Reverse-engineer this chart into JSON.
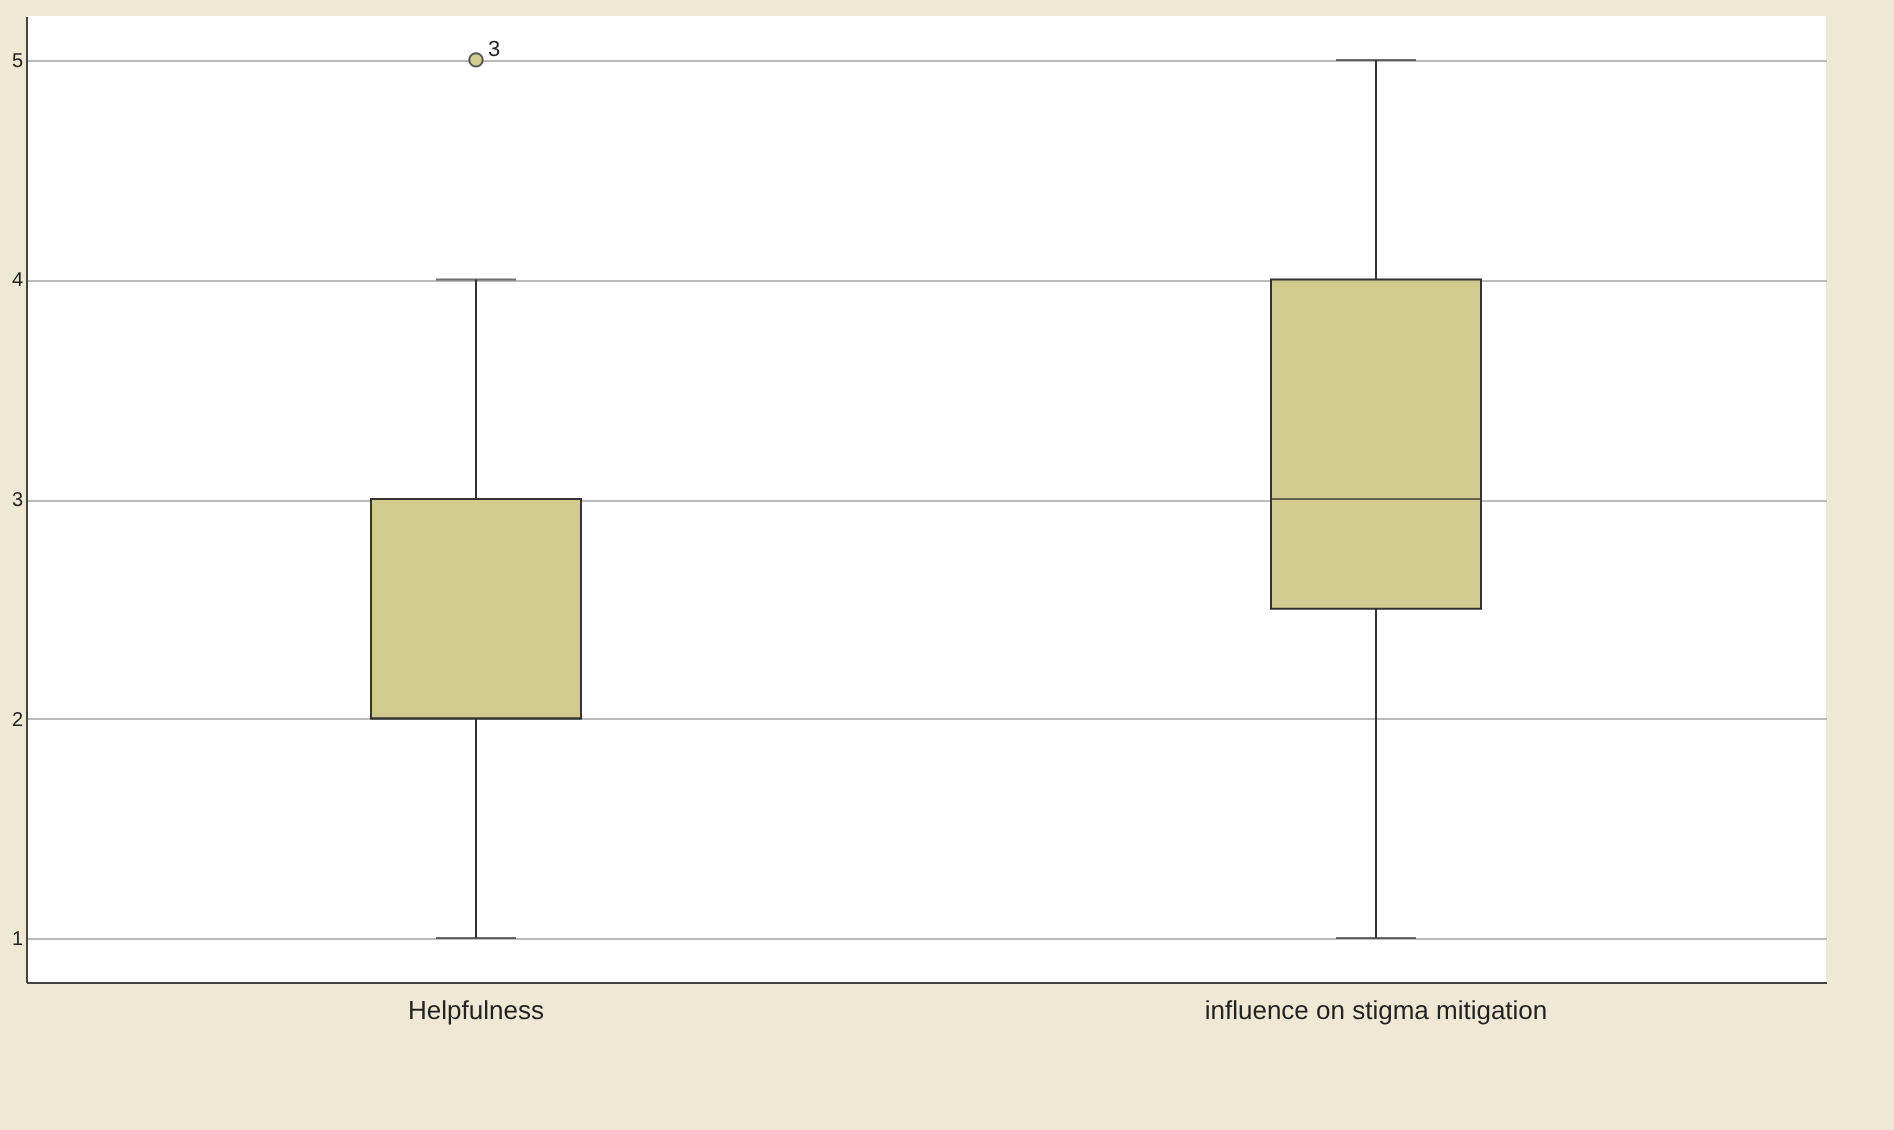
{
  "chart_data": {
    "type": "box",
    "categories": [
      "Helpfulness",
      "influence on stigma mitigation"
    ],
    "boxes": [
      {
        "low": 1,
        "q1": 2,
        "median": 2,
        "q3": 3,
        "high": 4,
        "outliers": [
          5
        ]
      },
      {
        "low": 1,
        "q1": 2.5,
        "median": 3,
        "q3": 4,
        "high": 5
      }
    ],
    "color": "#d1cb8f",
    "ylim": [
      0.8,
      5.2
    ],
    "yticks": [
      1,
      2,
      3,
      4,
      5
    ],
    "grid": "y",
    "annotations": [
      "3"
    ]
  }
}
